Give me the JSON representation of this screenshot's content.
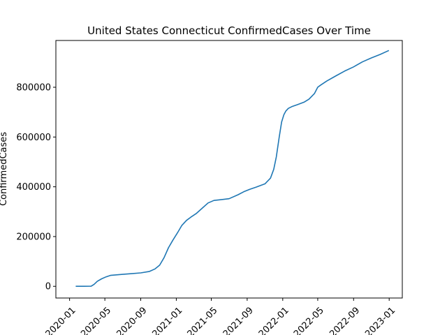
{
  "chart_data": {
    "type": "line",
    "title": "United States Connecticut ConfirmedCases Over Time",
    "xlabel": "",
    "ylabel": "ConfirmedCases",
    "x_ticks": [
      "2020-01",
      "2020-05",
      "2020-09",
      "2021-01",
      "2021-05",
      "2021-09",
      "2022-01",
      "2022-05",
      "2022-09",
      "2023-01"
    ],
    "y_ticks": [
      0,
      200000,
      400000,
      600000,
      800000
    ],
    "xlim": [
      "2019-11-15",
      "2023-02-15"
    ],
    "ylim": [
      -47000,
      988000
    ],
    "grid": false,
    "legend": "none",
    "series_color": "#1f77b4",
    "series": [
      {
        "x": [
          "2020-01-22",
          "2020-02-20",
          "2020-03-15",
          "2020-03-25",
          "2020-04-05",
          "2020-04-20",
          "2020-05-05",
          "2020-05-20",
          "2020-06-10",
          "2020-07-01",
          "2020-08-01",
          "2020-09-01",
          "2020-10-01",
          "2020-10-20",
          "2020-11-05",
          "2020-11-20",
          "2020-12-05",
          "2020-12-20",
          "2021-01-05",
          "2021-01-20",
          "2021-02-05",
          "2021-02-20",
          "2021-03-10",
          "2021-04-01",
          "2021-04-20",
          "2021-05-10",
          "2021-06-01",
          "2021-07-01",
          "2021-08-01",
          "2021-08-20",
          "2021-09-10",
          "2021-10-01",
          "2021-11-01",
          "2021-11-20",
          "2021-12-01",
          "2021-12-10",
          "2021-12-20",
          "2021-12-28",
          "2022-01-05",
          "2022-01-12",
          "2022-01-20",
          "2022-02-01",
          "2022-02-20",
          "2022-03-15",
          "2022-04-01",
          "2022-04-20",
          "2022-05-01",
          "2022-05-10",
          "2022-06-01",
          "2022-07-01",
          "2022-08-01",
          "2022-09-01",
          "2022-10-01",
          "2022-11-01",
          "2022-12-01",
          "2022-12-31"
        ],
        "y": [
          0,
          0,
          500,
          8000,
          20000,
          30000,
          38000,
          44000,
          46000,
          48000,
          51000,
          54000,
          60000,
          70000,
          85000,
          115000,
          155000,
          185000,
          215000,
          245000,
          265000,
          278000,
          292000,
          315000,
          335000,
          345000,
          348000,
          352000,
          368000,
          380000,
          390000,
          398000,
          412000,
          435000,
          470000,
          520000,
          600000,
          660000,
          690000,
          705000,
          715000,
          722000,
          730000,
          740000,
          752000,
          775000,
          800000,
          808000,
          825000,
          845000,
          865000,
          882000,
          902000,
          918000,
          932000,
          948000
        ]
      }
    ]
  }
}
